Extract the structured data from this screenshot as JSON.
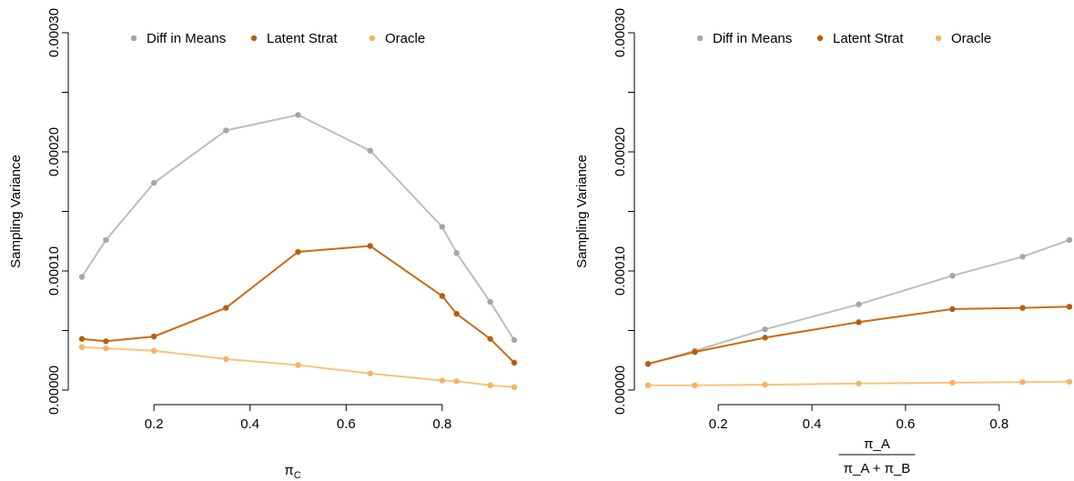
{
  "colors": {
    "diff_in_means": "#bdbdbd",
    "diff_in_means_point": "#a6a6a6",
    "latent_strat": "#cc6a13",
    "latent_strat_point": "#b95e0c",
    "oracle": "#fcc37a",
    "oracle_point": "#f7b262"
  },
  "chart_data": [
    {
      "type": "line",
      "ylabel": "Sampling Variance",
      "xlabel": {
        "symbol": "π",
        "subscript": "C"
      },
      "xticks": [
        0.2,
        0.4,
        0.6,
        0.8
      ],
      "xtick_labels": [
        "0.2",
        "0.4",
        "0.6",
        "0.8"
      ],
      "yticks": [
        0,
        0.0001,
        0.0002,
        0.0003
      ],
      "ytick_labels": [
        "0.00000",
        "0.00010",
        "0.00020",
        "0.00030"
      ],
      "xlim": [
        0.05,
        0.95
      ],
      "ylim": [
        0,
        0.0003
      ],
      "legend_position": "top",
      "series": [
        {
          "name": "Diff in Means",
          "key": "diff_in_means",
          "x": [
            0.05,
            0.1,
            0.2,
            0.35,
            0.5,
            0.65,
            0.8,
            0.83,
            0.9,
            0.95
          ],
          "y": [
            9.5e-05,
            0.000126,
            0.000174,
            0.000218,
            0.000231,
            0.000201,
            0.000137,
            0.000115,
            7.4e-05,
            4.2e-05
          ]
        },
        {
          "name": "Latent Strat",
          "key": "latent_strat",
          "x": [
            0.05,
            0.1,
            0.2,
            0.35,
            0.5,
            0.65,
            0.8,
            0.83,
            0.9,
            0.95
          ],
          "y": [
            4.3e-05,
            4.1e-05,
            4.5e-05,
            6.9e-05,
            0.000116,
            0.000121,
            7.9e-05,
            6.4e-05,
            4.3e-05,
            2.3e-05
          ]
        },
        {
          "name": "Oracle",
          "key": "oracle",
          "x": [
            0.05,
            0.1,
            0.2,
            0.35,
            0.5,
            0.65,
            0.8,
            0.83,
            0.9,
            0.95
          ],
          "y": [
            3.6e-05,
            3.5e-05,
            3.3e-05,
            2.6e-05,
            2.1e-05,
            1.4e-05,
            8e-06,
            7.5e-06,
            4e-06,
            2.5e-06
          ]
        }
      ]
    },
    {
      "type": "line",
      "ylabel": "Sampling Variance",
      "xlabel": {
        "numerator": "π_A",
        "denominator": "π_A + π_B"
      },
      "xticks": [
        0.2,
        0.4,
        0.6,
        0.8
      ],
      "xtick_labels": [
        "0.2",
        "0.4",
        "0.6",
        "0.8"
      ],
      "yticks": [
        0,
        0.0001,
        0.0002,
        0.0003
      ],
      "ytick_labels": [
        "0.00000",
        "0.00010",
        "0.00020",
        "0.00030"
      ],
      "xlim": [
        0.05,
        0.95
      ],
      "ylim": [
        0,
        0.0003
      ],
      "legend_position": "top",
      "series": [
        {
          "name": "Diff in Means",
          "key": "diff_in_means",
          "x": [
            0.05,
            0.15,
            0.3,
            0.5,
            0.7,
            0.85,
            0.95
          ],
          "y": [
            2.2e-05,
            3.3e-05,
            5.1e-05,
            7.2e-05,
            9.6e-05,
            0.000112,
            0.000126
          ]
        },
        {
          "name": "Latent Strat",
          "key": "latent_strat",
          "x": [
            0.05,
            0.15,
            0.3,
            0.5,
            0.7,
            0.85,
            0.95
          ],
          "y": [
            2.2e-05,
            3.2e-05,
            4.4e-05,
            5.7e-05,
            6.8e-05,
            6.9e-05,
            7e-05
          ]
        },
        {
          "name": "Oracle",
          "key": "oracle",
          "x": [
            0.05,
            0.15,
            0.3,
            0.5,
            0.7,
            0.85,
            0.95
          ],
          "y": [
            4e-06,
            4e-06,
            4.5e-06,
            5.5e-06,
            6.2e-06,
            6.7e-06,
            7e-06
          ]
        }
      ]
    }
  ]
}
